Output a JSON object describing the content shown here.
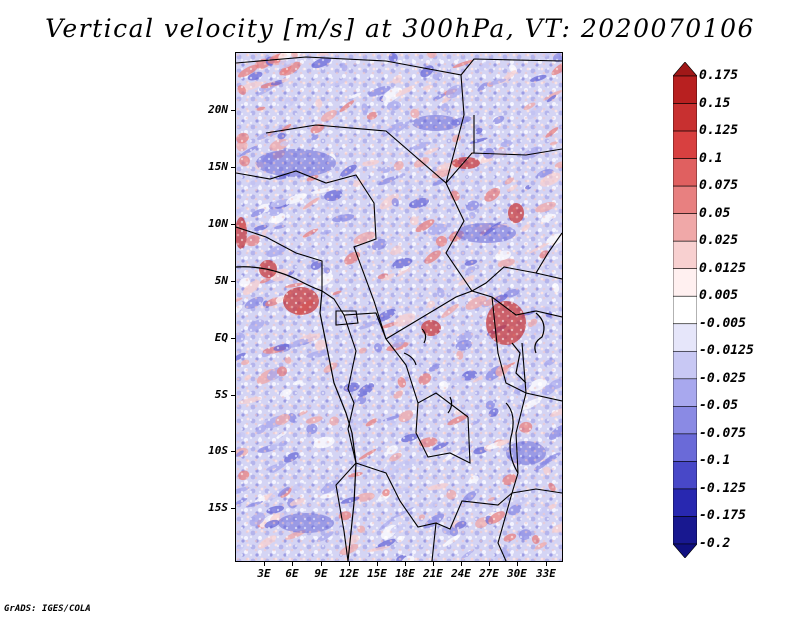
{
  "title": "Vertical velocity [m/s] at 300hPa, VT: 2020070106",
  "credit": "GrADS: IGES/COLA",
  "map": {
    "lat_labels": [
      "20N",
      "15N",
      "10N",
      "5N",
      "EQ",
      "5S",
      "10S",
      "15S"
    ],
    "lon_labels": [
      "3E",
      "6E",
      "9E",
      "12E",
      "15E",
      "18E",
      "21E",
      "24E",
      "27E",
      "30E",
      "33E"
    ],
    "lat_range": [
      -20,
      25
    ],
    "lon_range": [
      0,
      35
    ],
    "field": "vertical velocity",
    "units": "m/s",
    "level": "300hPa"
  },
  "colorbar": {
    "labels": [
      "0.175",
      "0.15",
      "0.125",
      "0.1",
      "0.075",
      "0.05",
      "0.025",
      "0.0125",
      "0.005",
      "-0.005",
      "-0.0125",
      "-0.025",
      "-0.05",
      "-0.075",
      "-0.1",
      "-0.125",
      "-0.175",
      "-0.2"
    ],
    "colors": [
      "#a01818",
      "#b82020",
      "#c83030",
      "#d84040",
      "#e06060",
      "#e88080",
      "#f0a8a8",
      "#f8d0d0",
      "#fff0f0",
      "#ffffff",
      "#e6e6fa",
      "#c8c8f4",
      "#a8a8ee",
      "#8a8ae4",
      "#6a6ad8",
      "#4848c8",
      "#2828b0",
      "#181890",
      "#101080"
    ]
  }
}
